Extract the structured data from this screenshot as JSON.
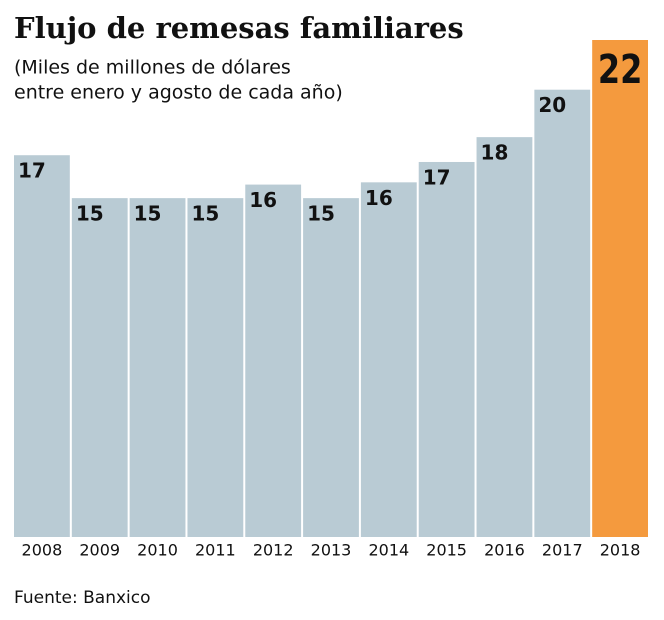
{
  "chart_data": {
    "type": "bar",
    "title": "Flujo de remesas familiares",
    "subtitle": [
      "(Miles de millones de dólares",
      "entre enero y agosto de cada año)"
    ],
    "categories": [
      "2008",
      "2009",
      "2010",
      "2011",
      "2012",
      "2013",
      "2014",
      "2015",
      "2016",
      "2017",
      "2018"
    ],
    "values": [
      16.9,
      15.0,
      15.0,
      15.0,
      15.6,
      15.0,
      15.7,
      16.6,
      17.7,
      19.8,
      22.0
    ],
    "value_labels": [
      "17",
      "15",
      "15",
      "15",
      "16",
      "15",
      "16",
      "17",
      "18",
      "20",
      "22"
    ],
    "colors": [
      "#b9cbd4",
      "#b9cbd4",
      "#b9cbd4",
      "#b9cbd4",
      "#b9cbd4",
      "#b9cbd4",
      "#b9cbd4",
      "#b9cbd4",
      "#b9cbd4",
      "#b9cbd4",
      "#f49a3e"
    ],
    "ylim": [
      0,
      22
    ],
    "source": "Fuente: Banxico"
  }
}
